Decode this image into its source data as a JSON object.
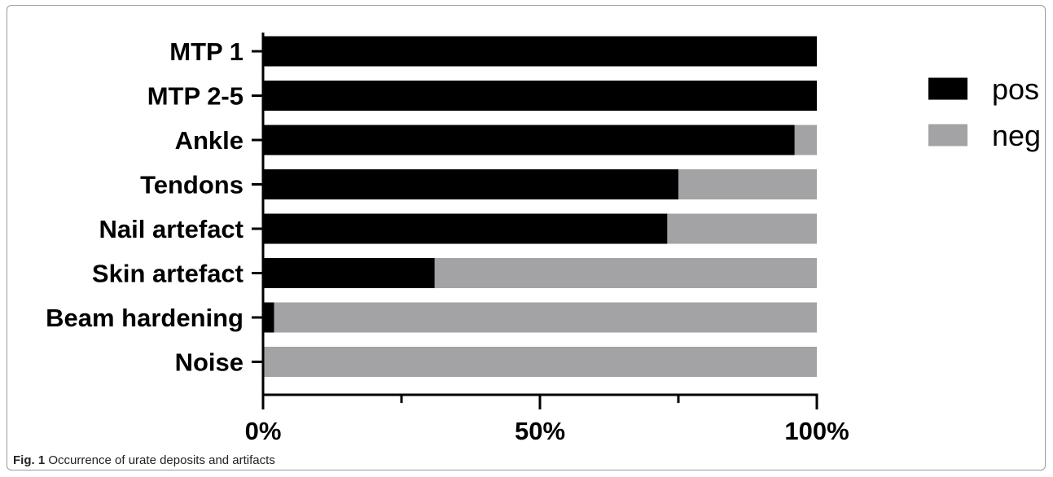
{
  "chart_data": {
    "type": "bar",
    "orientation": "horizontal",
    "stacked": true,
    "categories": [
      "MTP 1",
      "MTP 2-5",
      "Ankle",
      "Tendons",
      "Nail artefact",
      "Skin artefact",
      "Beam hardening",
      "Noise"
    ],
    "series": [
      {
        "name": "pos",
        "color": "#000000",
        "values": [
          100,
          100,
          96,
          75,
          73,
          31,
          2,
          0
        ]
      },
      {
        "name": "neg",
        "color": "#a3a3a5",
        "values": [
          0,
          0,
          4,
          25,
          27,
          69,
          98,
          100
        ]
      }
    ],
    "xlim": [
      0,
      100
    ],
    "x_ticks": [
      0,
      50,
      100
    ],
    "x_tick_labels": [
      "0%",
      "50%",
      "100%"
    ],
    "x_minor_ticks": [
      25,
      75
    ],
    "legend_position": "right",
    "grid": false
  },
  "caption": {
    "label": "Fig. 1",
    "text": "Occurrence of urate deposits and artifacts"
  }
}
